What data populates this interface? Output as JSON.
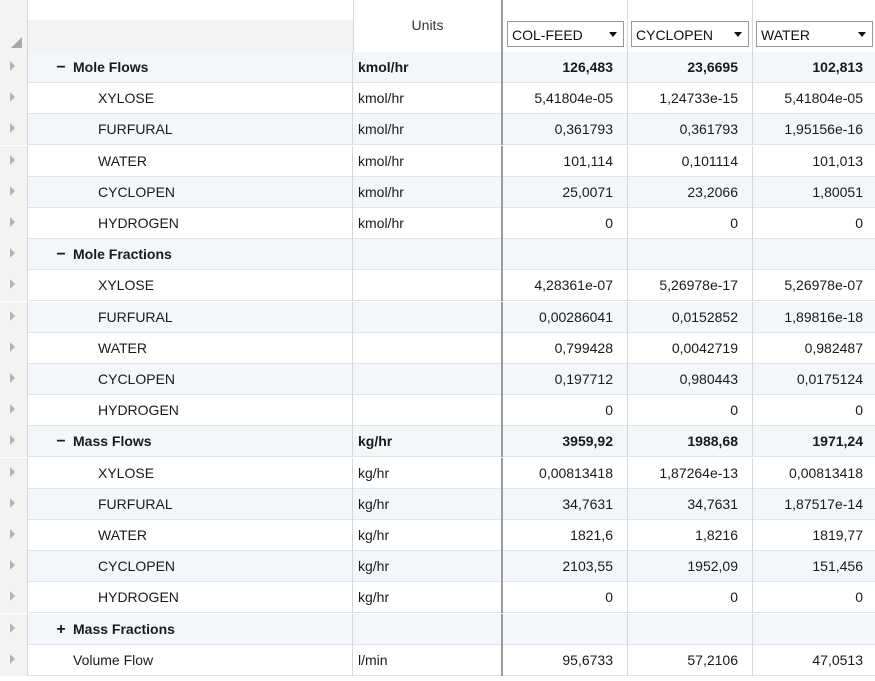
{
  "header": {
    "units_label": "Units",
    "streams": [
      "COL-FEED",
      "CYCLOPEN",
      "WATER"
    ]
  },
  "rows": [
    {
      "type": "group",
      "toggle": "−",
      "label": "Mole Flows",
      "units": "kmol/hr",
      "v": [
        "126,483",
        "23,6695",
        "102,813"
      ]
    },
    {
      "type": "item",
      "label": "XYLOSE",
      "units": "kmol/hr",
      "v": [
        "5,41804e-05",
        "1,24733e-15",
        "5,41804e-05"
      ]
    },
    {
      "type": "item",
      "label": "FURFURAL",
      "units": "kmol/hr",
      "v": [
        "0,361793",
        "0,361793",
        "1,95156e-16"
      ]
    },
    {
      "type": "item",
      "label": "WATER",
      "units": "kmol/hr",
      "v": [
        "101,114",
        "0,101114",
        "101,013"
      ]
    },
    {
      "type": "item",
      "label": "CYCLOPEN",
      "units": "kmol/hr",
      "v": [
        "25,0071",
        "23,2066",
        "1,80051"
      ]
    },
    {
      "type": "item",
      "label": "HYDROGEN",
      "units": "kmol/hr",
      "v": [
        "0",
        "0",
        "0"
      ]
    },
    {
      "type": "group",
      "toggle": "−",
      "label": "Mole Fractions",
      "units": "",
      "v": [
        "",
        "",
        ""
      ]
    },
    {
      "type": "item",
      "label": "XYLOSE",
      "units": "",
      "v": [
        "4,28361e-07",
        "5,26978e-17",
        "5,26978e-07"
      ]
    },
    {
      "type": "item",
      "label": "FURFURAL",
      "units": "",
      "v": [
        "0,00286041",
        "0,0152852",
        "1,89816e-18"
      ]
    },
    {
      "type": "item",
      "label": "WATER",
      "units": "",
      "v": [
        "0,799428",
        "0,0042719",
        "0,982487"
      ]
    },
    {
      "type": "item",
      "label": "CYCLOPEN",
      "units": "",
      "v": [
        "0,197712",
        "0,980443",
        "0,0175124"
      ]
    },
    {
      "type": "item",
      "label": "HYDROGEN",
      "units": "",
      "v": [
        "0",
        "0",
        "0"
      ]
    },
    {
      "type": "group",
      "toggle": "−",
      "label": "Mass Flows",
      "units": "kg/hr",
      "v": [
        "3959,92",
        "1988,68",
        "1971,24"
      ]
    },
    {
      "type": "item",
      "label": "XYLOSE",
      "units": "kg/hr",
      "v": [
        "0,00813418",
        "1,87264e-13",
        "0,00813418"
      ]
    },
    {
      "type": "item",
      "label": "FURFURAL",
      "units": "kg/hr",
      "v": [
        "34,7631",
        "34,7631",
        "1,87517e-14"
      ]
    },
    {
      "type": "item",
      "label": "WATER",
      "units": "kg/hr",
      "v": [
        "1821,6",
        "1,8216",
        "1819,77"
      ]
    },
    {
      "type": "item",
      "label": "CYCLOPEN",
      "units": "kg/hr",
      "v": [
        "2103,55",
        "1952,09",
        "151,456"
      ]
    },
    {
      "type": "item",
      "label": "HYDROGEN",
      "units": "kg/hr",
      "v": [
        "0",
        "0",
        "0"
      ]
    },
    {
      "type": "group",
      "toggle": "+",
      "label": "Mass Fractions",
      "units": "",
      "v": [
        "",
        "",
        ""
      ]
    },
    {
      "type": "top",
      "label": "Volume Flow",
      "units": "l/min",
      "v": [
        "95,6733",
        "57,2106",
        "47,0513"
      ]
    }
  ]
}
